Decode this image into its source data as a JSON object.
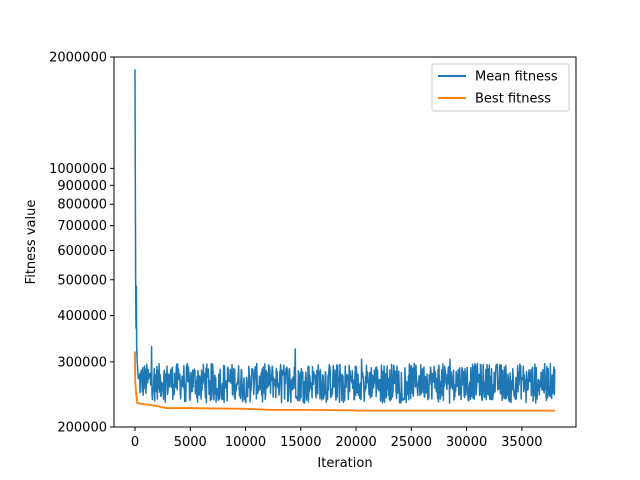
{
  "chart_data": {
    "type": "line",
    "title": "",
    "xlabel": "Iteration",
    "ylabel": "Fitness value",
    "xlim": [
      -1900,
      39900
    ],
    "ylim": [
      200000,
      2000000
    ],
    "yscale": "log",
    "x_ticks": [
      0,
      5000,
      10000,
      15000,
      20000,
      25000,
      30000,
      35000
    ],
    "x_tick_labels": [
      "0",
      "5000",
      "10000",
      "15000",
      "20000",
      "25000",
      "30000",
      "35000"
    ],
    "y_ticks": [
      200000,
      300000,
      400000,
      500000,
      600000,
      700000,
      800000,
      900000,
      1000000,
      2000000
    ],
    "y_tick_labels": [
      "200000",
      "300000",
      "400000",
      "500000",
      "600000",
      "700000",
      "800000",
      "900000",
      "1000000",
      "2000000"
    ],
    "legend_position": "top-right",
    "grid": false,
    "series": [
      {
        "name": "Mean fitness",
        "color": "#1f77b4",
        "description_of_shape": "noisy",
        "points": [
          [
            0,
            1850000
          ],
          [
            30,
            900000
          ],
          [
            60,
            500000
          ],
          [
            90,
            370000
          ],
          [
            120,
            480000
          ],
          [
            150,
            330000
          ],
          [
            200,
            300000
          ],
          [
            300,
            270000
          ],
          [
            500,
            255000
          ],
          [
            800,
            265000
          ],
          [
            1500,
            260000
          ],
          [
            2500,
            258000
          ],
          [
            5000,
            262000
          ],
          [
            7500,
            260000
          ],
          [
            10000,
            258000
          ],
          [
            12500,
            262000
          ],
          [
            15000,
            260000
          ],
          [
            17500,
            258000
          ],
          [
            20000,
            255000
          ],
          [
            22500,
            256000
          ],
          [
            25000,
            255000
          ],
          [
            27500,
            255000
          ],
          [
            30000,
            254000
          ],
          [
            32500,
            255000
          ],
          [
            35000,
            256000
          ],
          [
            38000,
            255000
          ]
        ],
        "noise_band": [
          232000,
          300000
        ],
        "spikes": [
          [
            1500,
            330000
          ],
          [
            2800,
            320000
          ],
          [
            5200,
            320000
          ],
          [
            8200,
            335000
          ],
          [
            11200,
            335000
          ],
          [
            12000,
            350000
          ],
          [
            14500,
            325000
          ],
          [
            17000,
            310000
          ],
          [
            20500,
            305000
          ],
          [
            24000,
            300000
          ],
          [
            28500,
            305000
          ],
          [
            33000,
            300000
          ]
        ]
      },
      {
        "name": "Best fitness",
        "color": "#ff7f0e",
        "points": [
          [
            0,
            320000
          ],
          [
            20,
            265000
          ],
          [
            100,
            247000
          ],
          [
            200,
            232000
          ],
          [
            1000,
            230000
          ],
          [
            2000,
            228000
          ],
          [
            2800,
            225000
          ],
          [
            5000,
            225000
          ],
          [
            7000,
            224500
          ],
          [
            10000,
            224000
          ],
          [
            12500,
            222500
          ],
          [
            15000,
            222500
          ],
          [
            19500,
            222000
          ],
          [
            20000,
            221500
          ],
          [
            25000,
            221500
          ],
          [
            30000,
            221500
          ],
          [
            35000,
            221500
          ],
          [
            38000,
            221500
          ]
        ]
      }
    ]
  }
}
